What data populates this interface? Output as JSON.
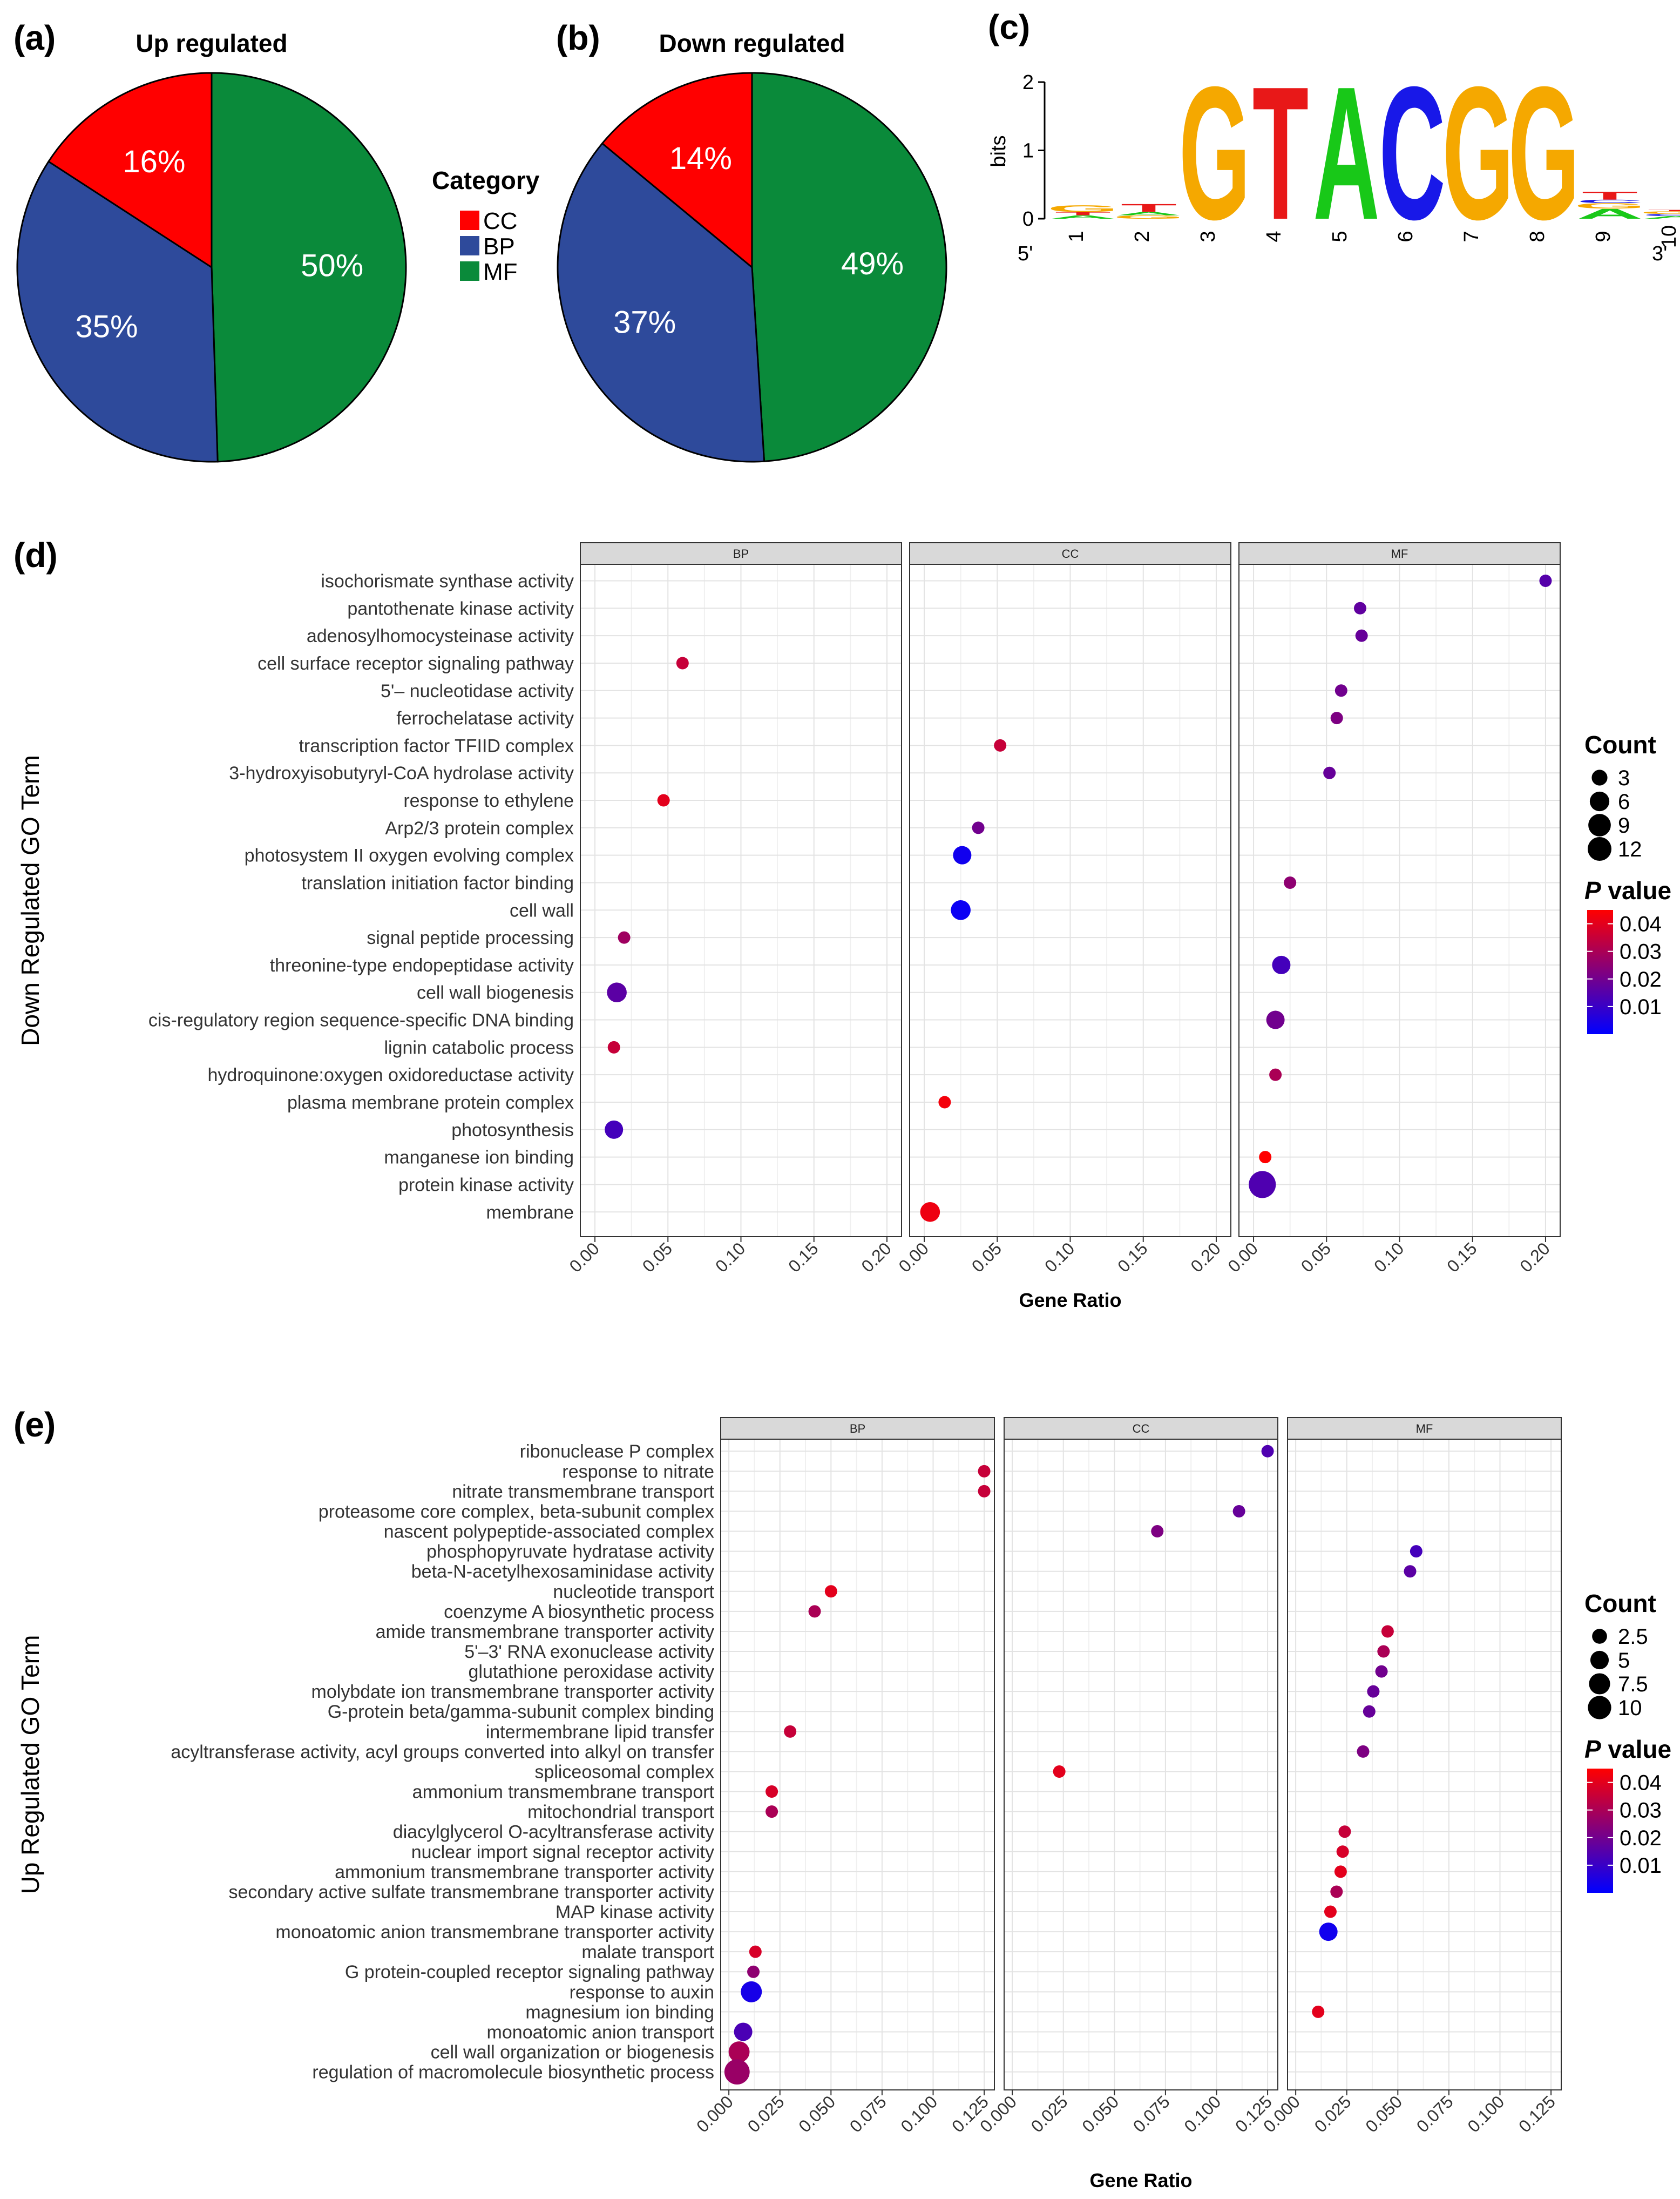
{
  "panels": {
    "a": "(a)",
    "b": "(b)",
    "c": "(c)",
    "d": "(d)",
    "e": "(e)"
  },
  "colors": {
    "CC": "#ff0000",
    "BP": "#2e4a9b",
    "MF": "#0a8a3a",
    "A": "#18c818",
    "C": "#1818e8",
    "G": "#f5a800",
    "T": "#e81818"
  },
  "chart_data": [
    {
      "id": "a",
      "type": "pie",
      "title": "Up regulated",
      "categories": [
        "CC",
        "BP",
        "MF"
      ],
      "values": [
        16,
        35,
        50
      ],
      "labels": [
        "16%",
        "35%",
        "50%"
      ]
    },
    {
      "id": "b",
      "type": "pie",
      "title": "Down regulated",
      "categories": [
        "CC",
        "BP",
        "MF"
      ],
      "values": [
        14,
        37,
        49
      ],
      "labels": [
        "14%",
        "37%",
        "49%"
      ]
    },
    {
      "id": "c",
      "type": "sequence-logo",
      "ylabel": "bits",
      "yticks": [
        "0",
        "1",
        "2"
      ],
      "ylim": [
        0,
        2
      ],
      "positions": [
        "1",
        "2",
        "3",
        "4",
        "5",
        "6",
        "7",
        "8",
        "9",
        "10"
      ],
      "end_labels": [
        "5'",
        "3'"
      ],
      "stacks": [
        [
          [
            "A",
            0.05
          ],
          [
            "T",
            0.05
          ],
          [
            "G",
            0.1
          ]
        ],
        [
          [
            "G",
            0.05
          ],
          [
            "A",
            0.05
          ],
          [
            "T",
            0.12
          ]
        ],
        [
          [
            "G",
            2.0
          ]
        ],
        [
          [
            "T",
            2.0
          ]
        ],
        [
          [
            "A",
            2.0
          ]
        ],
        [
          [
            "C",
            2.0
          ]
        ],
        [
          [
            "G",
            2.0
          ]
        ],
        [
          [
            "G",
            2.0
          ]
        ],
        [
          [
            "A",
            0.15
          ],
          [
            "G",
            0.08
          ],
          [
            "C",
            0.05
          ],
          [
            "T",
            0.12
          ]
        ],
        [
          [
            "A",
            0.04
          ],
          [
            "C",
            0.03
          ],
          [
            "G",
            0.04
          ],
          [
            "T",
            0.02
          ]
        ]
      ]
    },
    {
      "id": "d",
      "type": "scatter",
      "ylabel": "Down Regulated GO Term",
      "xlabel": "Gene Ratio",
      "facets": [
        "BP",
        "CC",
        "MF"
      ],
      "xlim": [
        -0.01,
        0.21
      ],
      "xticks": [
        "0.00",
        "0.05",
        "0.10",
        "0.15",
        "0.20"
      ],
      "xtick_values": [
        0,
        0.05,
        0.1,
        0.15,
        0.2
      ],
      "terms": [
        "isochorismate synthase activity",
        "pantothenate kinase activity",
        "adenosylhomocysteinase activity",
        "cell surface receptor signaling pathway",
        "5'– nucleotidase activity",
        "ferrochelatase activity",
        "transcription factor TFIID complex",
        "3-hydroxyisobutyryl-CoA hydrolase activity",
        "response to ethylene",
        "Arp2/3 protein complex",
        "photosystem II oxygen evolving complex",
        "translation initiation factor binding",
        "cell wall",
        "signal peptide processing",
        "threonine-type endopeptidase activity",
        "cell wall biogenesis",
        "cis-regulatory region sequence-specific DNA binding",
        "lignin catabolic process",
        "hydroquinone:oxygen oxidoreductase activity",
        "plasma membrane protein complex",
        "photosynthesis",
        "manganese ion binding",
        "protein kinase activity",
        "membrane"
      ],
      "size_legend": {
        "title": "Count",
        "values": [
          3,
          6,
          9,
          12
        ],
        "labels": [
          "3",
          "6",
          "9",
          "12"
        ]
      },
      "color_legend": {
        "title_italic": "P",
        "title_rest": " value",
        "min": 0.0,
        "max": 0.045,
        "ticks": [
          0.01,
          0.02,
          0.03,
          0.04
        ],
        "labels": [
          "0.01",
          "0.02",
          "0.03",
          "0.04"
        ]
      },
      "points": [
        {
          "term": 0,
          "facet": "MF",
          "x": 0.2,
          "count": 1,
          "p": 0.015
        },
        {
          "term": 1,
          "facet": "MF",
          "x": 0.073,
          "count": 1,
          "p": 0.017
        },
        {
          "term": 2,
          "facet": "MF",
          "x": 0.074,
          "count": 1,
          "p": 0.018
        },
        {
          "term": 3,
          "facet": "BP",
          "x": 0.06,
          "count": 1,
          "p": 0.035
        },
        {
          "term": 4,
          "facet": "MF",
          "x": 0.06,
          "count": 1,
          "p": 0.02
        },
        {
          "term": 5,
          "facet": "MF",
          "x": 0.057,
          "count": 1,
          "p": 0.022
        },
        {
          "term": 6,
          "facet": "CC",
          "x": 0.052,
          "count": 1,
          "p": 0.035
        },
        {
          "term": 7,
          "facet": "MF",
          "x": 0.052,
          "count": 1,
          "p": 0.018
        },
        {
          "term": 8,
          "facet": "BP",
          "x": 0.047,
          "count": 1,
          "p": 0.04
        },
        {
          "term": 9,
          "facet": "CC",
          "x": 0.037,
          "count": 1,
          "p": 0.02
        },
        {
          "term": 10,
          "facet": "CC",
          "x": 0.026,
          "count": 4,
          "p": 0.003
        },
        {
          "term": 11,
          "facet": "MF",
          "x": 0.025,
          "count": 1,
          "p": 0.025
        },
        {
          "term": 12,
          "facet": "CC",
          "x": 0.025,
          "count": 5,
          "p": 0.002
        },
        {
          "term": 13,
          "facet": "BP",
          "x": 0.02,
          "count": 1,
          "p": 0.028
        },
        {
          "term": 14,
          "facet": "MF",
          "x": 0.019,
          "count": 4,
          "p": 0.012
        },
        {
          "term": 15,
          "facet": "BP",
          "x": 0.015,
          "count": 5,
          "p": 0.016
        },
        {
          "term": 16,
          "facet": "MF",
          "x": 0.015,
          "count": 4,
          "p": 0.02
        },
        {
          "term": 17,
          "facet": "BP",
          "x": 0.013,
          "count": 1,
          "p": 0.035
        },
        {
          "term": 18,
          "facet": "MF",
          "x": 0.015,
          "count": 1,
          "p": 0.03
        },
        {
          "term": 19,
          "facet": "CC",
          "x": 0.014,
          "count": 1,
          "p": 0.043
        },
        {
          "term": 20,
          "facet": "BP",
          "x": 0.013,
          "count": 4,
          "p": 0.012
        },
        {
          "term": 21,
          "facet": "MF",
          "x": 0.008,
          "count": 1,
          "p": 0.045
        },
        {
          "term": 22,
          "facet": "MF",
          "x": 0.006,
          "count": 12,
          "p": 0.014
        },
        {
          "term": 23,
          "facet": "CC",
          "x": 0.004,
          "count": 5,
          "p": 0.042
        }
      ]
    },
    {
      "id": "e",
      "type": "scatter",
      "ylabel": "Up Regulated GO Term",
      "xlabel": "Gene Ratio",
      "facets": [
        "BP",
        "CC",
        "MF"
      ],
      "xlim": [
        -0.004,
        0.13
      ],
      "xticks": [
        "0.000",
        "0.025",
        "0.050",
        "0.075",
        "0.100",
        "0.125"
      ],
      "xtick_values": [
        0,
        0.025,
        0.05,
        0.075,
        0.1,
        0.125
      ],
      "terms": [
        "ribonuclease P complex",
        "response to nitrate",
        "nitrate transmembrane transport",
        "proteasome core complex, beta-subunit complex",
        "nascent polypeptide-associated complex",
        "phosphopyruvate hydratase activity",
        "beta-N-acetylhexosaminidase activity",
        "nucleotide transport",
        "coenzyme A biosynthetic process",
        "amide transmembrane transporter activity",
        "5'–3' RNA exonuclease activity",
        "glutathione peroxidase activity",
        "molybdate ion transmembrane transporter activity",
        "G-protein beta/gamma-subunit complex binding",
        "intermembrane lipid transfer",
        "acyltransferase activity, acyl groups converted into alkyl on transfer",
        "spliceosomal complex",
        "ammonium transmembrane transport",
        "mitochondrial transport",
        "diacylglycerol O-acyltransferase activity",
        "nuclear import signal receptor activity",
        "ammonium transmembrane transporter activity",
        "secondary active sulfate transmembrane transporter activity",
        "MAP kinase activity",
        "monoatomic anion transmembrane transporter activity",
        "malate transport",
        "G protein-coupled receptor signaling pathway",
        "response to auxin",
        "magnesium ion binding",
        "monoatomic anion transport",
        "cell wall organization or biogenesis",
        "regulation of macromolecule biosynthetic process"
      ],
      "size_legend": {
        "title": "Count",
        "values": [
          2.5,
          5,
          7.5,
          10
        ],
        "labels": [
          "2.5",
          "5",
          "7.5",
          "10"
        ]
      },
      "color_legend": {
        "title_italic": "P",
        "title_rest": " value",
        "min": 0.0,
        "max": 0.045,
        "ticks": [
          0.01,
          0.02,
          0.03,
          0.04
        ],
        "labels": [
          "0.01",
          "0.02",
          "0.03",
          "0.04"
        ]
      },
      "points": [
        {
          "term": 0,
          "facet": "CC",
          "x": 0.125,
          "count": 1,
          "p": 0.014
        },
        {
          "term": 1,
          "facet": "BP",
          "x": 0.125,
          "count": 1,
          "p": 0.035
        },
        {
          "term": 2,
          "facet": "BP",
          "x": 0.125,
          "count": 1,
          "p": 0.035
        },
        {
          "term": 3,
          "facet": "CC",
          "x": 0.111,
          "count": 1,
          "p": 0.018
        },
        {
          "term": 4,
          "facet": "CC",
          "x": 0.071,
          "count": 1,
          "p": 0.022
        },
        {
          "term": 5,
          "facet": "MF",
          "x": 0.059,
          "count": 1,
          "p": 0.012
        },
        {
          "term": 6,
          "facet": "MF",
          "x": 0.056,
          "count": 1,
          "p": 0.016
        },
        {
          "term": 7,
          "facet": "BP",
          "x": 0.05,
          "count": 1,
          "p": 0.04
        },
        {
          "term": 8,
          "facet": "BP",
          "x": 0.042,
          "count": 1,
          "p": 0.03
        },
        {
          "term": 9,
          "facet": "MF",
          "x": 0.045,
          "count": 1,
          "p": 0.035
        },
        {
          "term": 10,
          "facet": "MF",
          "x": 0.043,
          "count": 1,
          "p": 0.03
        },
        {
          "term": 11,
          "facet": "MF",
          "x": 0.042,
          "count": 1,
          "p": 0.02
        },
        {
          "term": 12,
          "facet": "MF",
          "x": 0.038,
          "count": 1,
          "p": 0.018
        },
        {
          "term": 13,
          "facet": "MF",
          "x": 0.036,
          "count": 1,
          "p": 0.018
        },
        {
          "term": 14,
          "facet": "BP",
          "x": 0.03,
          "count": 1,
          "p": 0.035
        },
        {
          "term": 15,
          "facet": "MF",
          "x": 0.033,
          "count": 1,
          "p": 0.022
        },
        {
          "term": 16,
          "facet": "CC",
          "x": 0.023,
          "count": 1,
          "p": 0.04
        },
        {
          "term": 17,
          "facet": "BP",
          "x": 0.021,
          "count": 1,
          "p": 0.038
        },
        {
          "term": 18,
          "facet": "BP",
          "x": 0.021,
          "count": 1,
          "p": 0.03
        },
        {
          "term": 19,
          "facet": "MF",
          "x": 0.024,
          "count": 1,
          "p": 0.035
        },
        {
          "term": 20,
          "facet": "MF",
          "x": 0.023,
          "count": 1,
          "p": 0.038
        },
        {
          "term": 21,
          "facet": "MF",
          "x": 0.022,
          "count": 1,
          "p": 0.04
        },
        {
          "term": 22,
          "facet": "MF",
          "x": 0.02,
          "count": 1,
          "p": 0.03
        },
        {
          "term": 23,
          "facet": "MF",
          "x": 0.017,
          "count": 1,
          "p": 0.04
        },
        {
          "term": 24,
          "facet": "MF",
          "x": 0.016,
          "count": 4,
          "p": 0.003
        },
        {
          "term": 25,
          "facet": "BP",
          "x": 0.013,
          "count": 1,
          "p": 0.038
        },
        {
          "term": 26,
          "facet": "BP",
          "x": 0.012,
          "count": 1,
          "p": 0.025
        },
        {
          "term": 27,
          "facet": "BP",
          "x": 0.011,
          "count": 6,
          "p": 0.004
        },
        {
          "term": 28,
          "facet": "MF",
          "x": 0.011,
          "count": 1,
          "p": 0.04
        },
        {
          "term": 29,
          "facet": "BP",
          "x": 0.007,
          "count": 4,
          "p": 0.013
        },
        {
          "term": 30,
          "facet": "BP",
          "x": 0.005,
          "count": 6,
          "p": 0.03
        },
        {
          "term": 31,
          "facet": "BP",
          "x": 0.004,
          "count": 10,
          "p": 0.027
        }
      ]
    }
  ]
}
